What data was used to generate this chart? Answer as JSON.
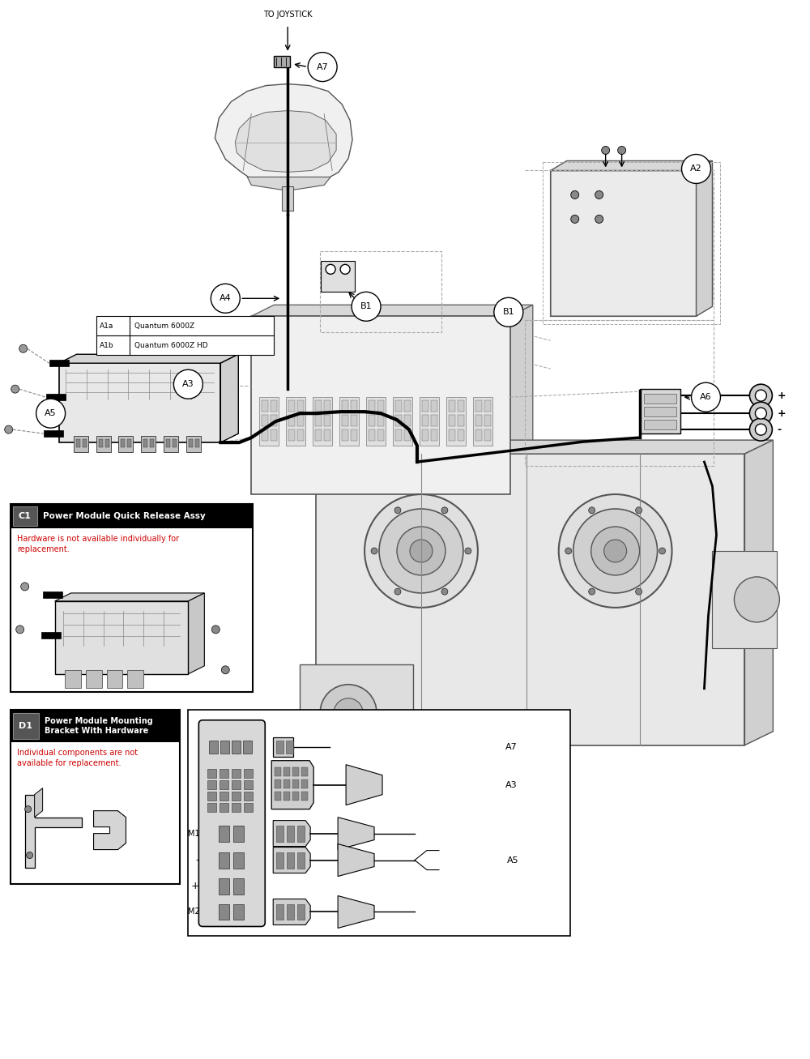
{
  "bg_color": "#ffffff",
  "fig_width": 10.0,
  "fig_height": 13.07,
  "labels": {
    "A1a": "Quantum 6000Z",
    "A1b": "Quantum 6000Z HD",
    "C1_title": "Power Module Quick Release Assy",
    "C1_sub": "Hardware is not available individually for\nreplacement.",
    "D1_title": "Power Module Mounting\nBracket With Hardware",
    "D1_sub": "Individual components are not\navailable for replacement.",
    "top_label": "TO JOYSTICK"
  },
  "colors": {
    "black": "#000000",
    "red": "#cc0000",
    "white": "#ffffff",
    "lgray": "#e8e8e8",
    "mgray": "#cccccc",
    "dgray": "#555555"
  }
}
